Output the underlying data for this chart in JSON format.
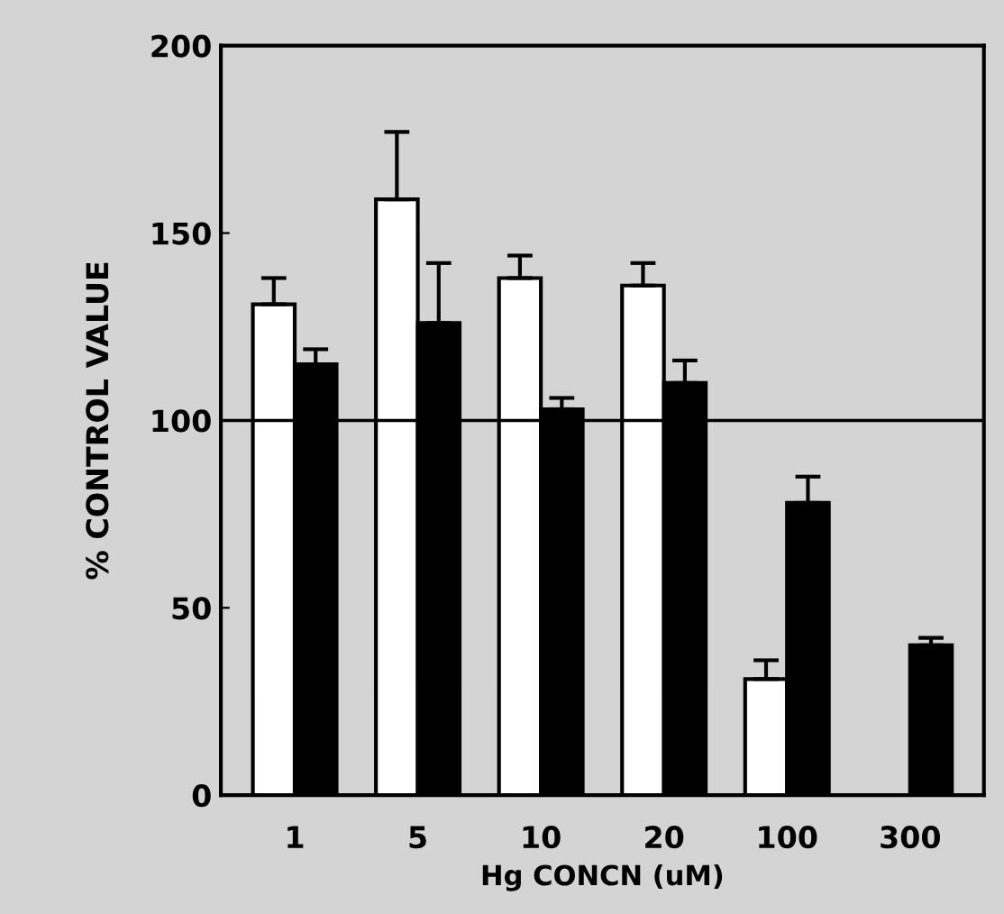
{
  "chart_data": {
    "type": "bar",
    "xlabel": "Hg CONCN (uM)",
    "ylabel": "% CONTROL VALUE",
    "categories": [
      "1",
      "5",
      "10",
      "20",
      "100",
      "300"
    ],
    "series": [
      {
        "color": "#ffffff",
        "values": [
          131,
          159,
          138,
          136,
          31,
          null
        ],
        "errors": [
          7,
          18,
          6,
          6,
          5,
          null
        ]
      },
      {
        "color": "#000000",
        "values": [
          115,
          126,
          103,
          110,
          78,
          40
        ],
        "errors": [
          4,
          16,
          3,
          6,
          7,
          2
        ]
      }
    ],
    "ylim": [
      0,
      200
    ],
    "yticks": [
      0,
      50,
      100,
      150,
      200
    ],
    "ref_lines": [
      {
        "axis": "y",
        "value": 100,
        "color": "#000000",
        "line_style": "solid"
      }
    ],
    "grid": false,
    "legend": false
  }
}
